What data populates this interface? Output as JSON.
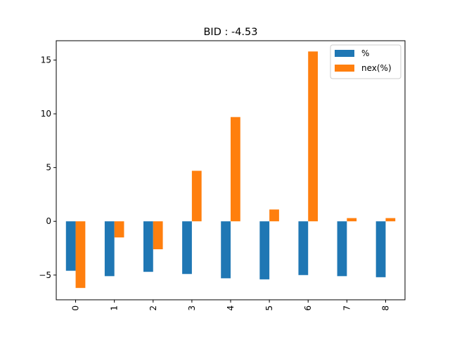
{
  "chart_data": {
    "type": "bar",
    "title": "BID : -4.53",
    "xlabel": "",
    "ylabel": "",
    "categories": [
      "0",
      "1",
      "2",
      "3",
      "4",
      "5",
      "6",
      "7",
      "8"
    ],
    "series": [
      {
        "name": "%",
        "color": "#1f77b4",
        "values": [
          -4.6,
          -5.1,
          -4.7,
          -4.9,
          -5.3,
          -5.4,
          -5.0,
          -5.1,
          -5.2
        ]
      },
      {
        "name": "nex(%)",
        "color": "#ff7f0e",
        "values": [
          -6.2,
          -1.5,
          -2.6,
          4.7,
          9.7,
          1.1,
          15.8,
          0.3,
          0.3
        ]
      }
    ],
    "ylim": [
      -7.3,
      16.8
    ],
    "yticks": [
      -5,
      0,
      5,
      10,
      15
    ],
    "grid": false,
    "legend_position": "top-right",
    "x_tick_rotation": "vertical"
  }
}
